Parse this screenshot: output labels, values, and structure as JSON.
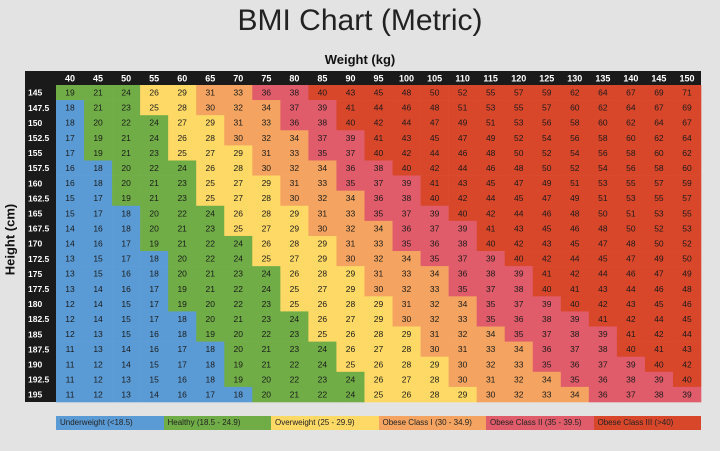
{
  "title": "BMI Chart (Metric)",
  "chart_data": {
    "type": "heatmap",
    "title": "BMI Chart (Metric)",
    "xlabel": "Weight (kg)",
    "ylabel": "Height (cm)",
    "x": [
      "40",
      "45",
      "50",
      "55",
      "60",
      "65",
      "70",
      "75",
      "80",
      "85",
      "90",
      "95",
      "100",
      "105",
      "110",
      "115",
      "120",
      "125",
      "130",
      "135",
      "140",
      "145",
      "150"
    ],
    "y": [
      "145",
      "147.5",
      "150",
      "152.5",
      "155",
      "157.5",
      "160",
      "162.5",
      "165",
      "167.5",
      "170",
      "172.5",
      "175",
      "177.5",
      "180",
      "182.5",
      "185",
      "187.5",
      "190",
      "192.5",
      "195"
    ],
    "values": [
      [
        19,
        21,
        24,
        26,
        29,
        31,
        33,
        36,
        38,
        40,
        43,
        45,
        48,
        50,
        52,
        55,
        57,
        59,
        62,
        64,
        67,
        69,
        71
      ],
      [
        18,
        21,
        23,
        25,
        28,
        30,
        32,
        34,
        37,
        39,
        41,
        44,
        46,
        48,
        51,
        53,
        55,
        57,
        60,
        62,
        64,
        67,
        69
      ],
      [
        18,
        20,
        22,
        24,
        27,
        29,
        31,
        33,
        36,
        38,
        40,
        42,
        44,
        47,
        49,
        51,
        53,
        56,
        58,
        60,
        62,
        64,
        67
      ],
      [
        17,
        19,
        21,
        24,
        26,
        28,
        30,
        32,
        34,
        37,
        39,
        41,
        43,
        45,
        47,
        49,
        52,
        54,
        56,
        58,
        60,
        62,
        64
      ],
      [
        17,
        19,
        21,
        23,
        25,
        27,
        29,
        31,
        33,
        35,
        37,
        40,
        42,
        44,
        46,
        48,
        50,
        52,
        54,
        56,
        58,
        60,
        62
      ],
      [
        16,
        18,
        20,
        22,
        24,
        26,
        28,
        30,
        32,
        34,
        36,
        38,
        40,
        42,
        44,
        46,
        48,
        50,
        52,
        54,
        56,
        58,
        60
      ],
      [
        16,
        18,
        20,
        21,
        23,
        25,
        27,
        29,
        31,
        33,
        35,
        37,
        39,
        41,
        43,
        45,
        47,
        49,
        51,
        53,
        55,
        57,
        59
      ],
      [
        15,
        17,
        19,
        21,
        23,
        25,
        27,
        28,
        30,
        32,
        34,
        36,
        38,
        40,
        42,
        44,
        45,
        47,
        49,
        51,
        53,
        55,
        57
      ],
      [
        15,
        17,
        18,
        20,
        22,
        24,
        26,
        28,
        29,
        31,
        33,
        35,
        37,
        39,
        40,
        42,
        44,
        46,
        48,
        50,
        51,
        53,
        55
      ],
      [
        14,
        16,
        18,
        20,
        21,
        23,
        25,
        27,
        29,
        30,
        32,
        34,
        36,
        37,
        39,
        41,
        43,
        45,
        46,
        48,
        50,
        52,
        53
      ],
      [
        14,
        16,
        17,
        19,
        21,
        22,
        24,
        26,
        28,
        29,
        31,
        33,
        35,
        36,
        38,
        40,
        42,
        43,
        45,
        47,
        48,
        50,
        52
      ],
      [
        13,
        15,
        17,
        18,
        20,
        22,
        24,
        25,
        27,
        29,
        30,
        32,
        34,
        35,
        37,
        39,
        40,
        42,
        44,
        45,
        47,
        49,
        50
      ],
      [
        13,
        15,
        16,
        18,
        20,
        21,
        23,
        24,
        26,
        28,
        29,
        31,
        33,
        34,
        36,
        38,
        39,
        41,
        42,
        44,
        46,
        47,
        49
      ],
      [
        13,
        14,
        16,
        17,
        19,
        21,
        22,
        24,
        25,
        27,
        29,
        30,
        32,
        33,
        35,
        37,
        38,
        40,
        41,
        43,
        44,
        46,
        48
      ],
      [
        12,
        14,
        15,
        17,
        19,
        20,
        22,
        23,
        25,
        26,
        28,
        29,
        31,
        32,
        34,
        35,
        37,
        39,
        40,
        42,
        43,
        45,
        46
      ],
      [
        12,
        14,
        15,
        17,
        18,
        20,
        21,
        23,
        24,
        26,
        27,
        29,
        30,
        32,
        33,
        35,
        36,
        38,
        39,
        41,
        42,
        44,
        45
      ],
      [
        12,
        13,
        15,
        16,
        18,
        19,
        20,
        22,
        23,
        25,
        26,
        28,
        29,
        31,
        32,
        34,
        35,
        37,
        38,
        39,
        41,
        42,
        44
      ],
      [
        11,
        13,
        14,
        16,
        17,
        18,
        20,
        21,
        23,
        24,
        26,
        27,
        28,
        30,
        31,
        33,
        34,
        36,
        37,
        38,
        40,
        41,
        43
      ],
      [
        11,
        12,
        14,
        15,
        17,
        18,
        19,
        21,
        22,
        24,
        25,
        26,
        28,
        29,
        30,
        32,
        33,
        35,
        36,
        37,
        39,
        40,
        42
      ],
      [
        11,
        12,
        13,
        15,
        16,
        18,
        19,
        20,
        22,
        23,
        24,
        26,
        27,
        28,
        30,
        31,
        32,
        34,
        35,
        36,
        38,
        39,
        40
      ],
      [
        11,
        12,
        13,
        14,
        16,
        17,
        18,
        20,
        21,
        22,
        24,
        25,
        26,
        28,
        29,
        30,
        32,
        33,
        34,
        36,
        37,
        38,
        39
      ]
    ],
    "categories_legend": [
      {
        "label": "Underweight (<18.5)",
        "color": "#5b9bd5"
      },
      {
        "label": "Healthy (18.5 - 24.9)",
        "color": "#70ad47"
      },
      {
        "label": "Overweight (25 - 29.9)",
        "color": "#ffd966"
      },
      {
        "label": "Obese Class I (30 - 34.9)",
        "color": "#f4a460"
      },
      {
        "label": "Obese Class II (35 - 39.5)",
        "color": "#e05c6a"
      },
      {
        "label": "Obese Class III (>40)",
        "color": "#d9472b"
      }
    ],
    "thresholds": [
      18.5,
      25,
      30,
      35,
      40
    ],
    "legend_placement": "bottom",
    "grid": true
  },
  "colors": {
    "header_bg": "#1a1a1a",
    "header_text": "#ffffff",
    "underweight": "#5b9bd5",
    "healthy": "#70ad47",
    "overweight": "#ffd966",
    "obese1": "#f4a460",
    "obese2": "#e05c6a",
    "obese3": "#d9472b"
  }
}
